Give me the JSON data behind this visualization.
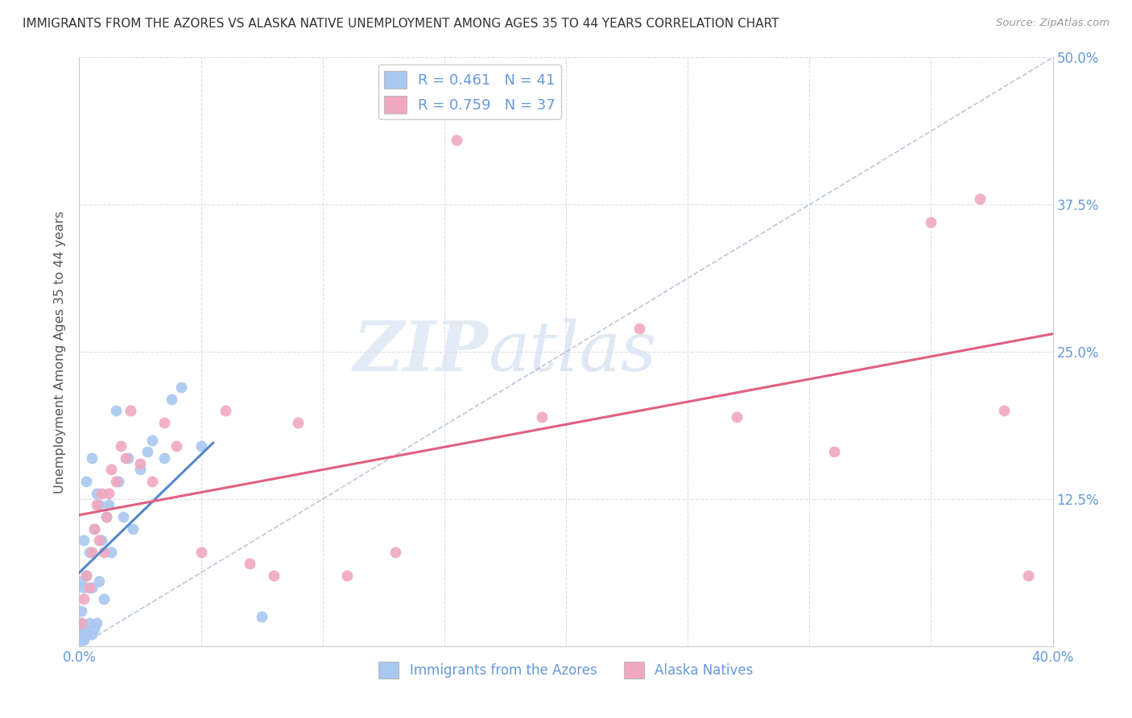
{
  "title": "IMMIGRANTS FROM THE AZORES VS ALASKA NATIVE UNEMPLOYMENT AMONG AGES 35 TO 44 YEARS CORRELATION CHART",
  "source": "Source: ZipAtlas.com",
  "ylabel": "Unemployment Among Ages 35 to 44 years",
  "xlim": [
    0.0,
    0.4
  ],
  "ylim": [
    0.0,
    0.5
  ],
  "xticks": [
    0.0,
    0.05,
    0.1,
    0.15,
    0.2,
    0.25,
    0.3,
    0.35,
    0.4
  ],
  "yticks": [
    0.0,
    0.125,
    0.25,
    0.375,
    0.5
  ],
  "R_blue": 0.461,
  "N_blue": 41,
  "R_pink": 0.759,
  "N_pink": 37,
  "blue_color": "#a8c8f0",
  "pink_color": "#f0a8c0",
  "blue_line_color": "#5588cc",
  "pink_line_color": "#e06080",
  "axis_label_color": "#6699dd",
  "title_color": "#333333",
  "watermark_zip": "ZIP",
  "watermark_atlas": "atlas",
  "grid_color": "#ddddee",
  "background_color": "#ffffff",
  "blue_scatter_x": [
    0.001,
    0.001,
    0.001,
    0.001,
    0.001,
    0.002,
    0.002,
    0.002,
    0.002,
    0.003,
    0.003,
    0.003,
    0.004,
    0.004,
    0.005,
    0.005,
    0.005,
    0.006,
    0.006,
    0.007,
    0.007,
    0.008,
    0.008,
    0.009,
    0.01,
    0.011,
    0.012,
    0.013,
    0.015,
    0.016,
    0.018,
    0.02,
    0.022,
    0.025,
    0.028,
    0.03,
    0.035,
    0.038,
    0.042,
    0.05,
    0.075
  ],
  "blue_scatter_y": [
    0.005,
    0.01,
    0.02,
    0.03,
    0.055,
    0.005,
    0.015,
    0.05,
    0.09,
    0.01,
    0.06,
    0.14,
    0.02,
    0.08,
    0.01,
    0.05,
    0.16,
    0.015,
    0.1,
    0.02,
    0.13,
    0.055,
    0.12,
    0.09,
    0.04,
    0.11,
    0.12,
    0.08,
    0.2,
    0.14,
    0.11,
    0.16,
    0.1,
    0.15,
    0.165,
    0.175,
    0.16,
    0.21,
    0.22,
    0.17,
    0.025
  ],
  "pink_scatter_x": [
    0.001,
    0.002,
    0.003,
    0.004,
    0.005,
    0.006,
    0.007,
    0.008,
    0.009,
    0.01,
    0.011,
    0.012,
    0.013,
    0.015,
    0.017,
    0.019,
    0.021,
    0.025,
    0.03,
    0.035,
    0.04,
    0.05,
    0.06,
    0.07,
    0.08,
    0.09,
    0.11,
    0.13,
    0.155,
    0.19,
    0.23,
    0.27,
    0.31,
    0.35,
    0.37,
    0.38,
    0.39
  ],
  "pink_scatter_y": [
    0.02,
    0.04,
    0.06,
    0.05,
    0.08,
    0.1,
    0.12,
    0.09,
    0.13,
    0.08,
    0.11,
    0.13,
    0.15,
    0.14,
    0.17,
    0.16,
    0.2,
    0.155,
    0.14,
    0.19,
    0.17,
    0.08,
    0.2,
    0.07,
    0.06,
    0.19,
    0.06,
    0.08,
    0.43,
    0.195,
    0.27,
    0.195,
    0.165,
    0.36,
    0.38,
    0.2,
    0.06
  ]
}
